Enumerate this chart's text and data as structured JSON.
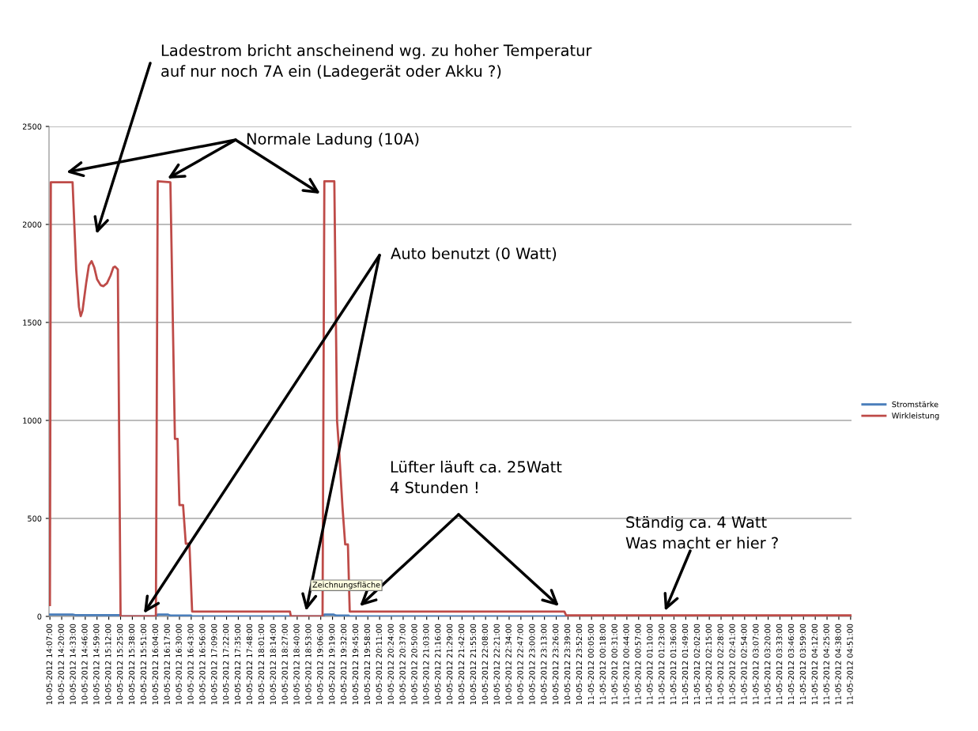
{
  "chart_data": {
    "type": "line",
    "series": [
      {
        "name": "Stromstärke",
        "color": "#4a7ebb",
        "x": [
          "2012-05-10T14:07",
          "2012-05-10T14:32",
          "2012-05-10T14:35",
          "2012-05-10T15:24",
          "2012-05-10T15:25",
          "2012-05-10T16:05",
          "2012-05-10T16:06",
          "2012-05-10T16:17",
          "2012-05-10T16:20",
          "2012-05-10T16:43",
          "2012-05-10T16:44",
          "2012-05-10T19:09",
          "2012-05-10T19:10",
          "2012-05-10T19:20",
          "2012-05-10T19:23",
          "2012-05-10T19:37",
          "2012-05-10T19:38",
          "2012-05-11T04:51"
        ],
        "values": [
          10,
          10,
          7,
          7,
          0,
          0,
          10,
          10,
          4,
          4,
          0,
          0,
          10,
          10,
          4,
          4,
          0,
          0
        ]
      },
      {
        "name": "Wirkleistung",
        "color": "#be4b48",
        "x": [
          "2012-05-10T14:07",
          "2012-05-10T14:08",
          "2012-05-10T14:32",
          "2012-05-10T14:36",
          "2012-05-10T14:39",
          "2012-05-10T14:41",
          "2012-05-10T14:43",
          "2012-05-10T14:47",
          "2012-05-10T14:50",
          "2012-05-10T14:53",
          "2012-05-10T14:56",
          "2012-05-10T14:59",
          "2012-05-10T15:03",
          "2012-05-10T15:06",
          "2012-05-10T15:10",
          "2012-05-10T15:14",
          "2012-05-10T15:17",
          "2012-05-10T15:19",
          "2012-05-10T15:22",
          "2012-05-10T15:25",
          "2012-05-10T16:04",
          "2012-05-10T16:06",
          "2012-05-10T16:20",
          "2012-05-10T16:25",
          "2012-05-10T16:28",
          "2012-05-10T16:30",
          "2012-05-10T16:34",
          "2012-05-10T16:37",
          "2012-05-10T16:41",
          "2012-05-10T16:44",
          "2012-05-10T18:32",
          "2012-05-10T18:33",
          "2012-05-10T19:08",
          "2012-05-10T19:10",
          "2012-05-10T19:21",
          "2012-05-10T19:24",
          "2012-05-10T19:26",
          "2012-05-10T19:30",
          "2012-05-10T19:33",
          "2012-05-10T19:36",
          "2012-05-10T19:38",
          "2012-05-10T23:35",
          "2012-05-10T23:37",
          "2012-05-11T04:51"
        ],
        "values": [
          58,
          2215,
          2215,
          1771,
          1580,
          1532,
          1560,
          1700,
          1790,
          1813,
          1780,
          1721,
          1690,
          1685,
          1700,
          1740,
          1780,
          1785,
          1770,
          0,
          0,
          2220,
          2215,
          906,
          906,
          568,
          568,
          371,
          371,
          25,
          25,
          0,
          0,
          2220,
          2220,
          1000,
          868,
          559,
          367,
          367,
          25,
          25,
          5,
          5
        ]
      }
    ],
    "xlim": [
      "2012-05-10T14:06",
      "2012-05-11T04:52"
    ],
    "xticks": [
      {
        "value": "2012-05-10T14:07",
        "label": "10-05-2012 14:07:00"
      },
      {
        "value": "2012-05-10T14:20",
        "label": "10-05-2012 14:20:00"
      },
      {
        "value": "2012-05-10T14:33",
        "label": "10-05-2012 14:33:00"
      },
      {
        "value": "2012-05-10T14:46",
        "label": "10-05-2012 14:46:00"
      },
      {
        "value": "2012-05-10T14:59",
        "label": "10-05-2012 14:59:00"
      },
      {
        "value": "2012-05-10T15:12",
        "label": "10-05-2012 15:12:00"
      },
      {
        "value": "2012-05-10T15:25",
        "label": "10-05-2012 15:25:00"
      },
      {
        "value": "2012-05-10T15:38",
        "label": "10-05-2012 15:38:00"
      },
      {
        "value": "2012-05-10T15:51",
        "label": "10-05-2012 15:51:00"
      },
      {
        "value": "2012-05-10T16:04",
        "label": "10-05-2012 16:04:00"
      },
      {
        "value": "2012-05-10T16:17",
        "label": "10-05-2012 16:17:00"
      },
      {
        "value": "2012-05-10T16:30",
        "label": "10-05-2012 16:30:00"
      },
      {
        "value": "2012-05-10T16:43",
        "label": "10-05-2012 16:43:00"
      },
      {
        "value": "2012-05-10T16:56",
        "label": "10-05-2012 16:56:00"
      },
      {
        "value": "2012-05-10T17:09",
        "label": "10-05-2012 17:09:00"
      },
      {
        "value": "2012-05-10T17:22",
        "label": "10-05-2012 17:22:00"
      },
      {
        "value": "2012-05-10T17:35",
        "label": "10-05-2012 17:35:00"
      },
      {
        "value": "2012-05-10T17:48",
        "label": "10-05-2012 17:48:00"
      },
      {
        "value": "2012-05-10T18:01",
        "label": "10-05-2012 18:01:00"
      },
      {
        "value": "2012-05-10T18:14",
        "label": "10-05-2012 18:14:00"
      },
      {
        "value": "2012-05-10T18:27",
        "label": "10-05-2012 18:27:00"
      },
      {
        "value": "2012-05-10T18:40",
        "label": "10-05-2012 18:40:00"
      },
      {
        "value": "2012-05-10T18:53",
        "label": "10-05-2012 18:53:00"
      },
      {
        "value": "2012-05-10T19:06",
        "label": "10-05-2012 19:06:00"
      },
      {
        "value": "2012-05-10T19:19",
        "label": "10-05-2012 19:19:00"
      },
      {
        "value": "2012-05-10T19:32",
        "label": "10-05-2012 19:32:00"
      },
      {
        "value": "2012-05-10T19:45",
        "label": "10-05-2012 19:45:00"
      },
      {
        "value": "2012-05-10T19:58",
        "label": "10-05-2012 19:58:00"
      },
      {
        "value": "2012-05-10T20:11",
        "label": "10-05-2012 20:11:00"
      },
      {
        "value": "2012-05-10T20:24",
        "label": "10-05-2012 20:24:00"
      },
      {
        "value": "2012-05-10T20:37",
        "label": "10-05-2012 20:37:00"
      },
      {
        "value": "2012-05-10T20:50",
        "label": "10-05-2012 20:50:00"
      },
      {
        "value": "2012-05-10T21:03",
        "label": "10-05-2012 21:03:00"
      },
      {
        "value": "2012-05-10T21:16",
        "label": "10-05-2012 21:16:00"
      },
      {
        "value": "2012-05-10T21:29",
        "label": "10-05-2012 21:29:00"
      },
      {
        "value": "2012-05-10T21:42",
        "label": "10-05-2012 21:42:00"
      },
      {
        "value": "2012-05-10T21:55",
        "label": "10-05-2012 21:55:00"
      },
      {
        "value": "2012-05-10T22:08",
        "label": "10-05-2012 22:08:00"
      },
      {
        "value": "2012-05-10T22:21",
        "label": "10-05-2012 22:21:00"
      },
      {
        "value": "2012-05-10T22:34",
        "label": "10-05-2012 22:34:00"
      },
      {
        "value": "2012-05-10T22:47",
        "label": "10-05-2012 22:47:00"
      },
      {
        "value": "2012-05-10T23:00",
        "label": "10-05-2012 23:00:00"
      },
      {
        "value": "2012-05-10T23:13",
        "label": "10-05-2012 23:13:00"
      },
      {
        "value": "2012-05-10T23:26",
        "label": "10-05-2012 23:26:00"
      },
      {
        "value": "2012-05-10T23:39",
        "label": "10-05-2012 23:39:00"
      },
      {
        "value": "2012-05-10T23:52",
        "label": "10-05-2012 23:52:00"
      },
      {
        "value": "2012-05-11T00:05",
        "label": "11-05-2012 00:05:00"
      },
      {
        "value": "2012-05-11T00:18",
        "label": "11-05-2012 00:18:00"
      },
      {
        "value": "2012-05-11T00:31",
        "label": "11-05-2012 00:31:00"
      },
      {
        "value": "2012-05-11T00:44",
        "label": "11-05-2012 00:44:00"
      },
      {
        "value": "2012-05-11T00:57",
        "label": "11-05-2012 00:57:00"
      },
      {
        "value": "2012-05-11T01:10",
        "label": "11-05-2012 01:10:00"
      },
      {
        "value": "2012-05-11T01:23",
        "label": "11-05-2012 01:23:00"
      },
      {
        "value": "2012-05-11T01:36",
        "label": "11-05-2012 01:36:00"
      },
      {
        "value": "2012-05-11T01:49",
        "label": "11-05-2012 01:49:00"
      },
      {
        "value": "2012-05-11T02:02",
        "label": "11-05-2012 02:02:00"
      },
      {
        "value": "2012-05-11T02:15",
        "label": "11-05-2012 02:15:00"
      },
      {
        "value": "2012-05-11T02:28",
        "label": "11-05-2012 02:28:00"
      },
      {
        "value": "2012-05-11T02:41",
        "label": "11-05-2012 02:41:00"
      },
      {
        "value": "2012-05-11T02:54",
        "label": "11-05-2012 02:54:00"
      },
      {
        "value": "2012-05-11T03:07",
        "label": "11-05-2012 03:07:00"
      },
      {
        "value": "2012-05-11T03:20",
        "label": "11-05-2012 03:20:00"
      },
      {
        "value": "2012-05-11T03:33",
        "label": "11-05-2012 03:33:00"
      },
      {
        "value": "2012-05-11T03:46",
        "label": "11-05-2012 03:46:00"
      },
      {
        "value": "2012-05-11T03:59",
        "label": "11-05-2012 03:59:00"
      },
      {
        "value": "2012-05-11T04:12",
        "label": "11-05-2012 04:12:00"
      },
      {
        "value": "2012-05-11T04:25",
        "label": "11-05-2012 04:25:00"
      },
      {
        "value": "2012-05-11T04:38",
        "label": "11-05-2012 04:38:00"
      },
      {
        "value": "2012-05-11T04:51",
        "label": "11-05-2012 04:51:00"
      }
    ],
    "ylim": [
      0,
      2500
    ],
    "yticks": [
      0,
      500,
      1000,
      1500,
      2000,
      2500
    ],
    "grid": "y",
    "legend": "right",
    "marker": "none",
    "line_style": "solid",
    "annotations": [
      "Ladestrom bricht anscheinend wg. zu hoher Temperatur\nauf nur noch 7A ein (Ladegerät oder Akku ?)",
      "Normale Ladung (10A)",
      "Auto benutzt (0 Watt)",
      "Lüfter läuft ca. 25Watt\n4 Stunden !",
      "Ständig ca. 4 Watt\nWas macht er hier ?",
      "Zeichnungsfläche"
    ]
  }
}
